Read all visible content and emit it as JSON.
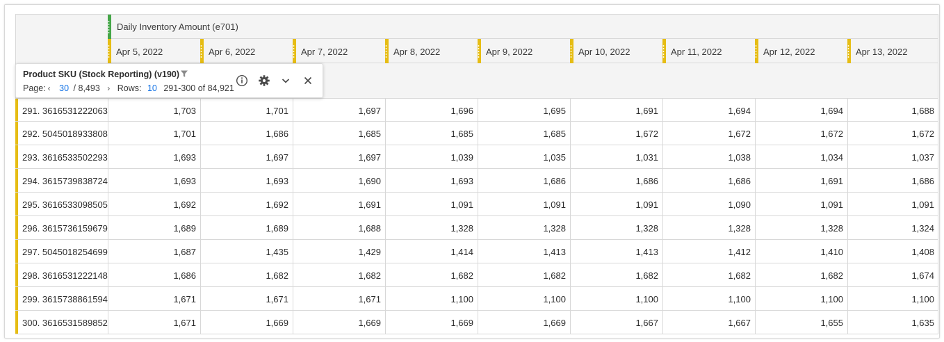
{
  "metric": {
    "title": "Daily Inventory Amount (e701)",
    "color": "#45a648"
  },
  "date_color": "#e6bd14",
  "dates": [
    "Apr 5, 2022",
    "Apr 6, 2022",
    "Apr 7, 2022",
    "Apr 8, 2022",
    "Apr 9, 2022",
    "Apr 10, 2022",
    "Apr 11, 2022",
    "Apr 12, 2022",
    "Apr 13, 2022"
  ],
  "dimension": {
    "title": "Product SKU (Stock Reporting) (v190)",
    "page_label": "Page:",
    "page_current": "30",
    "page_total": "/ 8,493",
    "rows_label": "Rows:",
    "rows_value": "10",
    "range_text": "291-300 of 84,921",
    "icons": [
      "filter-icon",
      "info-icon",
      "gear-icon",
      "chevron-down-icon",
      "close-icon"
    ]
  },
  "rows": [
    {
      "label": "291.  3616531222063",
      "values": [
        "1,703",
        "1,701",
        "1,697",
        "1,696",
        "1,695",
        "1,691",
        "1,694",
        "1,694",
        "1,688"
      ]
    },
    {
      "label": "292.  5045018933808",
      "values": [
        "1,701",
        "1,686",
        "1,685",
        "1,685",
        "1,685",
        "1,672",
        "1,672",
        "1,672",
        "1,672"
      ]
    },
    {
      "label": "293.  3616533502293",
      "values": [
        "1,693",
        "1,697",
        "1,697",
        "1,039",
        "1,035",
        "1,031",
        "1,038",
        "1,034",
        "1,037"
      ]
    },
    {
      "label": "294.  3615739838724",
      "values": [
        "1,693",
        "1,693",
        "1,690",
        "1,693",
        "1,686",
        "1,686",
        "1,686",
        "1,691",
        "1,686"
      ]
    },
    {
      "label": "295.  3616533098505",
      "values": [
        "1,692",
        "1,692",
        "1,691",
        "1,091",
        "1,091",
        "1,091",
        "1,090",
        "1,091",
        "1,091"
      ]
    },
    {
      "label": "296.  3615736159679",
      "values": [
        "1,689",
        "1,689",
        "1,688",
        "1,328",
        "1,328",
        "1,328",
        "1,328",
        "1,328",
        "1,324"
      ]
    },
    {
      "label": "297.  5045018254699",
      "values": [
        "1,687",
        "1,435",
        "1,429",
        "1,414",
        "1,413",
        "1,413",
        "1,412",
        "1,410",
        "1,408"
      ]
    },
    {
      "label": "298.  3616531222148",
      "values": [
        "1,686",
        "1,682",
        "1,682",
        "1,682",
        "1,682",
        "1,682",
        "1,682",
        "1,682",
        "1,674"
      ]
    },
    {
      "label": "299.  3615738861594",
      "values": [
        "1,671",
        "1,671",
        "1,671",
        "1,100",
        "1,100",
        "1,100",
        "1,100",
        "1,100",
        "1,100"
      ]
    },
    {
      "label": "300.  3616531589852",
      "values": [
        "1,671",
        "1,669",
        "1,669",
        "1,669",
        "1,669",
        "1,667",
        "1,667",
        "1,655",
        "1,635"
      ]
    }
  ]
}
